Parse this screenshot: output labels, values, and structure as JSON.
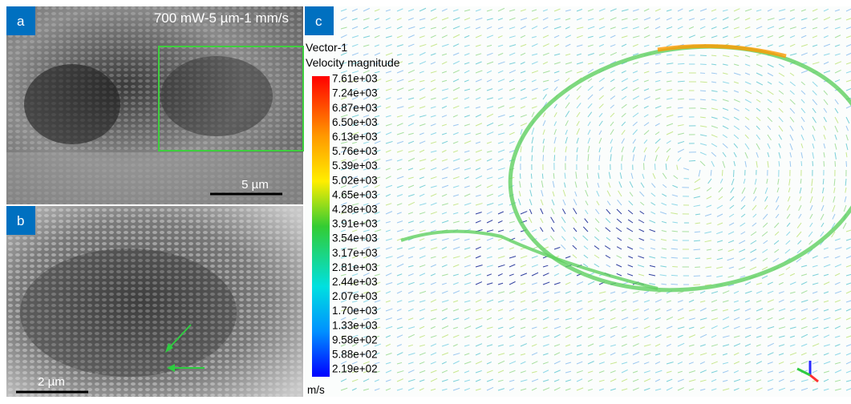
{
  "panels": [
    {
      "label": "a",
      "caption": "700 mW-5 µm-1 mm/s",
      "scale_bar": "5 µm"
    },
    {
      "label": "b",
      "scale_bar": "2 µm"
    },
    {
      "label": "c"
    }
  ],
  "legend": {
    "title": "Vector-1",
    "quantity": "Velocity magnitude",
    "ticks": [
      "7.61e+03",
      "7.24e+03",
      "6.87e+03",
      "6.50e+03",
      "6.13e+03",
      "5.76e+03",
      "5.39e+03",
      "5.02e+03",
      "4.65e+03",
      "4.28e+03",
      "3.91e+03",
      "3.54e+03",
      "3.17e+03",
      "2.81e+03",
      "2.44e+03",
      "2.07e+03",
      "1.70e+03",
      "1.33e+03",
      "9.58e+02",
      "5.88e+02",
      "2.19e+02"
    ],
    "unit": "m/s"
  }
}
